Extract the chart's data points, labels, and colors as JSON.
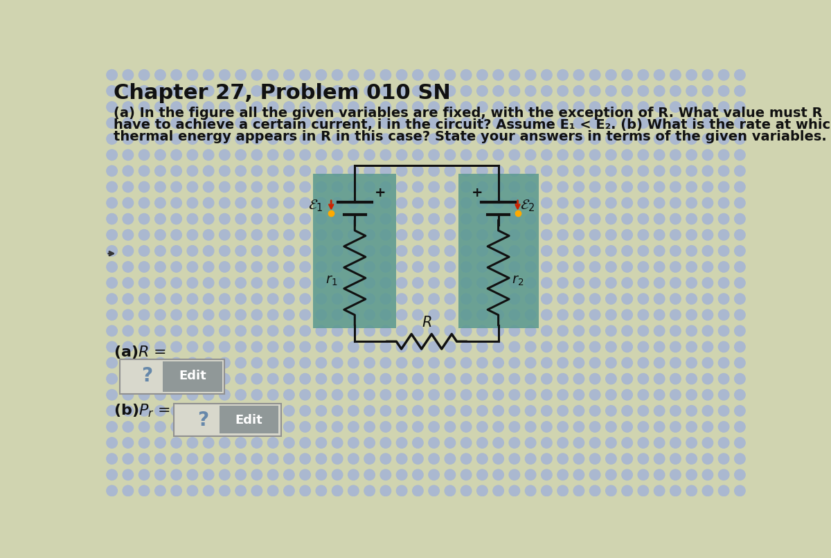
{
  "title": "Chapter 27, Problem 010 SN",
  "title_fontsize": 22,
  "title_fontweight": "bold",
  "body_text_line1": "(a) In the figure all the given variables are fixed, with the exception of R. What value must R",
  "body_text_line2": "have to achieve a certain current, i in the circuit? Assume E₁ < E₂. (b) What is the rate at which",
  "body_text_line3": "thermal energy appears in R in this case? State your answers in terms of the given variables.",
  "body_fontsize": 14,
  "answer_a_label": "(a)R =",
  "answer_b_label": "(b)P",
  "answer_fontsize": 16,
  "bg_color_outer": "#c8c8b8",
  "bg_dot_color": "#aab8d0",
  "bg_base_color": "#d0d4b0",
  "battery_box_color": "#6fa89a",
  "wire_color": "#111111",
  "button_q_bg": "#e0e0e0",
  "button_q_border": "#909090",
  "button_edit_bg": "#a0a8a8",
  "button_edit_text": "#ffffff"
}
